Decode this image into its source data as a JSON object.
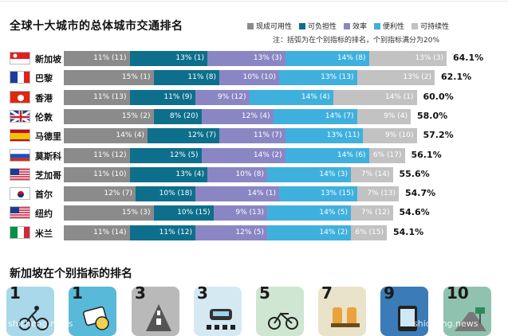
{
  "title": "全球十大城市的总体城市交通排名",
  "note": "注：括弧为在个别指标的排名，个别指标满分为20%",
  "legend": [
    {
      "label": "现成可用性",
      "color": "#8b8b8b"
    },
    {
      "label": "可负担性",
      "color": "#0e6f8c"
    },
    {
      "label": "效率",
      "color": "#8a86c4"
    },
    {
      "label": "便利性",
      "color": "#3fb0de"
    },
    {
      "label": "可持续性",
      "color": "#c2c2c2"
    }
  ],
  "subtitle": "新加坡在个别指标的排名",
  "rank_tiles": [
    "1",
    "1",
    "3",
    "3",
    "5",
    "7",
    "9",
    "10"
  ],
  "watermarks": [
    "shicheng.news",
    "shicheng.news"
  ],
  "chart_data": {
    "type": "bar",
    "stacked": true,
    "orientation": "horizontal",
    "categories": [
      "新加坡",
      "巴黎",
      "香港",
      "伦敦",
      "马德里",
      "莫斯科",
      "芝加哥",
      "首尔",
      "纽约",
      "米兰"
    ],
    "totals": [
      "64.1%",
      "62.1%",
      "60.0%",
      "58.0%",
      "57.2%",
      "56.1%",
      "55.6%",
      "54.7%",
      "54.6%",
      "54.1%"
    ],
    "series": [
      {
        "name": "现成可用性",
        "values": [
          11,
          15,
          11,
          15,
          14,
          11,
          11,
          12,
          15,
          11
        ],
        "labels": [
          "11% (11)",
          "15% (1)",
          "11% (13)",
          "15% (2)",
          "14% (4)",
          "11% (12)",
          "11% (10)",
          "12% (7)",
          "15% (3)",
          "11% (14)"
        ]
      },
      {
        "name": "可负担性",
        "values": [
          13,
          11,
          11,
          8,
          12,
          12,
          13,
          10,
          10,
          11
        ],
        "labels": [
          "13% (1)",
          "11% (8)",
          "11% (9)",
          "8% (20)",
          "12% (7)",
          "12% (5)",
          "13% (4)",
          "10% (18)",
          "10% (15)",
          "11% (12)"
        ]
      },
      {
        "name": "效率",
        "values": [
          13,
          10,
          9,
          12,
          11,
          14,
          10,
          14,
          9,
          12
        ],
        "labels": [
          "13% (3)",
          "10% (10)",
          "9% (12)",
          "12% (4)",
          "11% (7)",
          "14% (2)",
          "10% (8)",
          "14% (1)",
          "9% (13)",
          "12% (5)"
        ]
      },
      {
        "name": "便利性",
        "values": [
          14,
          13,
          14,
          14,
          13,
          14,
          14,
          13,
          14,
          14
        ],
        "labels": [
          "14% (8)",
          "13% (13)",
          "14% (4)",
          "14% (7)",
          "13% (11)",
          "14% (6)",
          "14% (3)",
          "13% (15)",
          "14% (5)",
          "14% (2)"
        ]
      },
      {
        "name": "可持续性",
        "values": [
          13,
          13,
          14,
          9,
          9,
          6,
          7,
          7,
          7,
          6
        ],
        "labels": [
          "13% (3)",
          "13% (2)",
          "14% (1)",
          "9% (4)",
          "9% (10)",
          "6% (17)",
          "7% (14)",
          "7% (13)",
          "7% (12)",
          "6% (15)"
        ]
      }
    ],
    "flags": [
      "singapore",
      "france",
      "hongkong",
      "uk",
      "spain",
      "russia",
      "usa",
      "korea",
      "usa",
      "italy"
    ]
  }
}
